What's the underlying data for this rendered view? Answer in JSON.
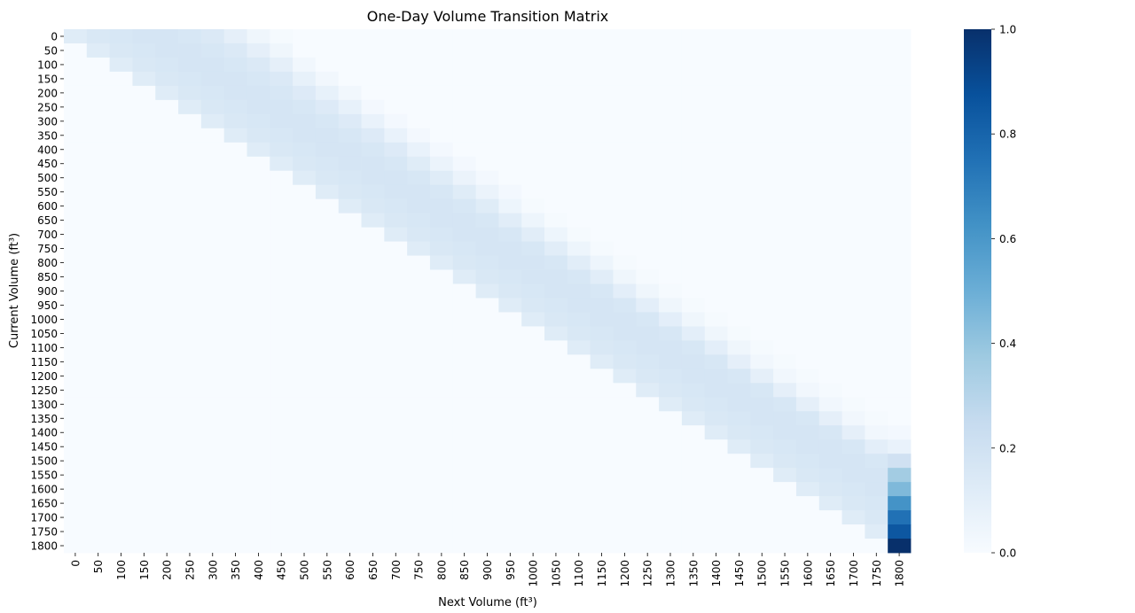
{
  "chart_data": {
    "type": "heatmap",
    "title": "One-Day Volume Transition Matrix",
    "xlabel": "Next Volume (ft³)",
    "ylabel": "Current Volume (ft³)",
    "x_categories": [
      "0",
      "50",
      "100",
      "150",
      "200",
      "250",
      "300",
      "350",
      "400",
      "450",
      "500",
      "550",
      "600",
      "650",
      "700",
      "750",
      "800",
      "850",
      "900",
      "950",
      "1000",
      "1050",
      "1100",
      "1150",
      "1200",
      "1250",
      "1300",
      "1350",
      "1400",
      "1450",
      "1500",
      "1550",
      "1600",
      "1650",
      "1700",
      "1750",
      "1800"
    ],
    "y_categories": [
      "0",
      "50",
      "100",
      "150",
      "200",
      "250",
      "300",
      "350",
      "400",
      "450",
      "500",
      "550",
      "600",
      "650",
      "700",
      "750",
      "800",
      "850",
      "900",
      "950",
      "1000",
      "1050",
      "1100",
      "1150",
      "1200",
      "1250",
      "1300",
      "1350",
      "1400",
      "1450",
      "1500",
      "1550",
      "1600",
      "1650",
      "1700",
      "1750",
      "1800"
    ],
    "values": [
      [
        0.12,
        0.15,
        0.16,
        0.17,
        0.17,
        0.16,
        0.14,
        0.09,
        0.04,
        0.01,
        0,
        0,
        0,
        0,
        0,
        0,
        0,
        0,
        0,
        0,
        0,
        0,
        0,
        0,
        0,
        0,
        0,
        0,
        0,
        0,
        0,
        0,
        0,
        0,
        0,
        0,
        0
      ],
      [
        0,
        0.12,
        0.15,
        0.16,
        0.17,
        0.17,
        0.16,
        0.14,
        0.09,
        0.04,
        0,
        0,
        0,
        0,
        0,
        0,
        0,
        0,
        0,
        0,
        0,
        0,
        0,
        0,
        0,
        0,
        0,
        0,
        0,
        0,
        0,
        0,
        0,
        0,
        0,
        0,
        0
      ],
      [
        0,
        0,
        0.12,
        0.15,
        0.16,
        0.17,
        0.17,
        0.16,
        0.14,
        0.09,
        0.03,
        0,
        0,
        0,
        0,
        0,
        0,
        0,
        0,
        0,
        0,
        0,
        0,
        0,
        0,
        0,
        0,
        0,
        0,
        0,
        0,
        0,
        0,
        0,
        0,
        0,
        0
      ],
      [
        0,
        0,
        0,
        0.12,
        0.15,
        0.16,
        0.17,
        0.17,
        0.16,
        0.14,
        0.08,
        0.03,
        0,
        0,
        0,
        0,
        0,
        0,
        0,
        0,
        0,
        0,
        0,
        0,
        0,
        0,
        0,
        0,
        0,
        0,
        0,
        0,
        0,
        0,
        0,
        0,
        0
      ],
      [
        0,
        0,
        0,
        0,
        0.12,
        0.15,
        0.16,
        0.17,
        0.17,
        0.16,
        0.13,
        0.08,
        0.03,
        0,
        0,
        0,
        0,
        0,
        0,
        0,
        0,
        0,
        0,
        0,
        0,
        0,
        0,
        0,
        0,
        0,
        0,
        0,
        0,
        0,
        0,
        0,
        0
      ],
      [
        0,
        0,
        0,
        0,
        0,
        0.12,
        0.15,
        0.16,
        0.17,
        0.17,
        0.16,
        0.13,
        0.08,
        0.02,
        0,
        0,
        0,
        0,
        0,
        0,
        0,
        0,
        0,
        0,
        0,
        0,
        0,
        0,
        0,
        0,
        0,
        0,
        0,
        0,
        0,
        0,
        0
      ],
      [
        0,
        0,
        0,
        0,
        0,
        0,
        0.12,
        0.15,
        0.16,
        0.17,
        0.17,
        0.16,
        0.13,
        0.07,
        0.02,
        0,
        0,
        0,
        0,
        0,
        0,
        0,
        0,
        0,
        0,
        0,
        0,
        0,
        0,
        0,
        0,
        0,
        0,
        0,
        0,
        0,
        0
      ],
      [
        0,
        0,
        0,
        0,
        0,
        0,
        0,
        0.12,
        0.15,
        0.16,
        0.17,
        0.17,
        0.16,
        0.13,
        0.07,
        0.02,
        0,
        0,
        0,
        0,
        0,
        0,
        0,
        0,
        0,
        0,
        0,
        0,
        0,
        0,
        0,
        0,
        0,
        0,
        0,
        0,
        0
      ],
      [
        0,
        0,
        0,
        0,
        0,
        0,
        0,
        0,
        0.12,
        0.15,
        0.16,
        0.17,
        0.17,
        0.16,
        0.13,
        0.07,
        0.02,
        0,
        0,
        0,
        0,
        0,
        0,
        0,
        0,
        0,
        0,
        0,
        0,
        0,
        0,
        0,
        0,
        0,
        0,
        0,
        0
      ],
      [
        0,
        0,
        0,
        0,
        0,
        0,
        0,
        0,
        0,
        0.12,
        0.15,
        0.16,
        0.17,
        0.17,
        0.16,
        0.12,
        0.06,
        0.02,
        0,
        0,
        0,
        0,
        0,
        0,
        0,
        0,
        0,
        0,
        0,
        0,
        0,
        0,
        0,
        0,
        0,
        0,
        0
      ],
      [
        0,
        0,
        0,
        0,
        0,
        0,
        0,
        0,
        0,
        0,
        0.12,
        0.15,
        0.16,
        0.17,
        0.17,
        0.16,
        0.12,
        0.06,
        0.02,
        0,
        0,
        0,
        0,
        0,
        0,
        0,
        0,
        0,
        0,
        0,
        0,
        0,
        0,
        0,
        0,
        0,
        0
      ],
      [
        0,
        0,
        0,
        0,
        0,
        0,
        0,
        0,
        0,
        0,
        0,
        0.12,
        0.15,
        0.16,
        0.17,
        0.17,
        0.16,
        0.12,
        0.06,
        0.02,
        0,
        0,
        0,
        0,
        0,
        0,
        0,
        0,
        0,
        0,
        0,
        0,
        0,
        0,
        0,
        0,
        0
      ],
      [
        0,
        0,
        0,
        0,
        0,
        0,
        0,
        0,
        0,
        0,
        0,
        0,
        0.12,
        0.15,
        0.16,
        0.17,
        0.17,
        0.16,
        0.12,
        0.05,
        0.01,
        0,
        0,
        0,
        0,
        0,
        0,
        0,
        0,
        0,
        0,
        0,
        0,
        0,
        0,
        0,
        0
      ],
      [
        0,
        0,
        0,
        0,
        0,
        0,
        0,
        0,
        0,
        0,
        0,
        0,
        0,
        0.12,
        0.15,
        0.16,
        0.17,
        0.17,
        0.16,
        0.11,
        0.05,
        0.01,
        0,
        0,
        0,
        0,
        0,
        0,
        0,
        0,
        0,
        0,
        0,
        0,
        0,
        0,
        0
      ],
      [
        0,
        0,
        0,
        0,
        0,
        0,
        0,
        0,
        0,
        0,
        0,
        0,
        0,
        0,
        0.12,
        0.15,
        0.16,
        0.17,
        0.17,
        0.16,
        0.11,
        0.05,
        0.01,
        0,
        0,
        0,
        0,
        0,
        0,
        0,
        0,
        0,
        0,
        0,
        0,
        0,
        0
      ],
      [
        0,
        0,
        0,
        0,
        0,
        0,
        0,
        0,
        0,
        0,
        0,
        0,
        0,
        0,
        0,
        0.12,
        0.15,
        0.16,
        0.17,
        0.17,
        0.16,
        0.11,
        0.05,
        0.01,
        0,
        0,
        0,
        0,
        0,
        0,
        0,
        0,
        0,
        0,
        0,
        0,
        0
      ],
      [
        0,
        0,
        0,
        0,
        0,
        0,
        0,
        0,
        0,
        0,
        0,
        0,
        0,
        0,
        0,
        0,
        0.12,
        0.15,
        0.16,
        0.17,
        0.17,
        0.16,
        0.11,
        0.05,
        0.01,
        0,
        0,
        0,
        0,
        0,
        0,
        0,
        0,
        0,
        0,
        0,
        0
      ],
      [
        0,
        0,
        0,
        0,
        0,
        0,
        0,
        0,
        0,
        0,
        0,
        0,
        0,
        0,
        0,
        0,
        0,
        0.12,
        0.15,
        0.16,
        0.17,
        0.17,
        0.16,
        0.11,
        0.04,
        0.01,
        0,
        0,
        0,
        0,
        0,
        0,
        0,
        0,
        0,
        0,
        0
      ],
      [
        0,
        0,
        0,
        0,
        0,
        0,
        0,
        0,
        0,
        0,
        0,
        0,
        0,
        0,
        0,
        0,
        0,
        0,
        0.12,
        0.15,
        0.16,
        0.17,
        0.17,
        0.16,
        0.1,
        0.04,
        0.01,
        0,
        0,
        0,
        0,
        0,
        0,
        0,
        0,
        0,
        0
      ],
      [
        0,
        0,
        0,
        0,
        0,
        0,
        0,
        0,
        0,
        0,
        0,
        0,
        0,
        0,
        0,
        0,
        0,
        0,
        0,
        0.12,
        0.15,
        0.16,
        0.17,
        0.17,
        0.16,
        0.1,
        0.04,
        0.01,
        0,
        0,
        0,
        0,
        0,
        0,
        0,
        0,
        0
      ],
      [
        0,
        0,
        0,
        0,
        0,
        0,
        0,
        0,
        0,
        0,
        0,
        0,
        0,
        0,
        0,
        0,
        0,
        0,
        0,
        0,
        0.12,
        0.15,
        0.16,
        0.17,
        0.17,
        0.16,
        0.1,
        0.04,
        0.01,
        0,
        0,
        0,
        0,
        0,
        0,
        0,
        0
      ],
      [
        0,
        0,
        0,
        0,
        0,
        0,
        0,
        0,
        0,
        0,
        0,
        0,
        0,
        0,
        0,
        0,
        0,
        0,
        0,
        0,
        0,
        0.12,
        0.15,
        0.16,
        0.17,
        0.17,
        0.16,
        0.1,
        0.04,
        0.01,
        0,
        0,
        0,
        0,
        0,
        0,
        0
      ],
      [
        0,
        0,
        0,
        0,
        0,
        0,
        0,
        0,
        0,
        0,
        0,
        0,
        0,
        0,
        0,
        0,
        0,
        0,
        0,
        0,
        0,
        0,
        0.12,
        0.15,
        0.16,
        0.17,
        0.17,
        0.16,
        0.1,
        0.04,
        0.01,
        0,
        0,
        0,
        0,
        0,
        0
      ],
      [
        0,
        0,
        0,
        0,
        0,
        0,
        0,
        0,
        0,
        0,
        0,
        0,
        0,
        0,
        0,
        0,
        0,
        0,
        0,
        0,
        0,
        0,
        0,
        0.12,
        0.15,
        0.16,
        0.17,
        0.17,
        0.16,
        0.09,
        0.03,
        0.01,
        0,
        0,
        0,
        0,
        0
      ],
      [
        0,
        0,
        0,
        0,
        0,
        0,
        0,
        0,
        0,
        0,
        0,
        0,
        0,
        0,
        0,
        0,
        0,
        0,
        0,
        0,
        0,
        0,
        0,
        0,
        0.12,
        0.15,
        0.16,
        0.17,
        0.17,
        0.16,
        0.09,
        0.03,
        0.01,
        0,
        0,
        0,
        0
      ],
      [
        0,
        0,
        0,
        0,
        0,
        0,
        0,
        0,
        0,
        0,
        0,
        0,
        0,
        0,
        0,
        0,
        0,
        0,
        0,
        0,
        0,
        0,
        0,
        0,
        0,
        0.12,
        0.15,
        0.16,
        0.17,
        0.17,
        0.16,
        0.09,
        0.03,
        0.01,
        0,
        0,
        0
      ],
      [
        0,
        0,
        0,
        0,
        0,
        0,
        0,
        0,
        0,
        0,
        0,
        0,
        0,
        0,
        0,
        0,
        0,
        0,
        0,
        0,
        0,
        0,
        0,
        0,
        0,
        0,
        0.12,
        0.15,
        0.16,
        0.17,
        0.17,
        0.16,
        0.09,
        0.03,
        0.01,
        0,
        0
      ],
      [
        0,
        0,
        0,
        0,
        0,
        0,
        0,
        0,
        0,
        0,
        0,
        0,
        0,
        0,
        0,
        0,
        0,
        0,
        0,
        0,
        0,
        0,
        0,
        0,
        0,
        0,
        0,
        0.12,
        0.15,
        0.16,
        0.17,
        0.17,
        0.16,
        0.09,
        0.03,
        0.01,
        0
      ],
      [
        0,
        0,
        0,
        0,
        0,
        0,
        0,
        0,
        0,
        0,
        0,
        0,
        0,
        0,
        0,
        0,
        0,
        0,
        0,
        0,
        0,
        0,
        0,
        0,
        0,
        0,
        0,
        0,
        0.12,
        0.15,
        0.16,
        0.17,
        0.17,
        0.16,
        0.09,
        0.03,
        0.02
      ],
      [
        0,
        0,
        0,
        0,
        0,
        0,
        0,
        0,
        0,
        0,
        0,
        0,
        0,
        0,
        0,
        0,
        0,
        0,
        0,
        0,
        0,
        0,
        0,
        0,
        0,
        0,
        0,
        0,
        0,
        0.12,
        0.15,
        0.16,
        0.17,
        0.17,
        0.16,
        0.1,
        0.07
      ],
      [
        0,
        0,
        0,
        0,
        0,
        0,
        0,
        0,
        0,
        0,
        0,
        0,
        0,
        0,
        0,
        0,
        0,
        0,
        0,
        0,
        0,
        0,
        0,
        0,
        0,
        0,
        0,
        0,
        0,
        0,
        0.12,
        0.15,
        0.16,
        0.17,
        0.17,
        0.16,
        0.2
      ],
      [
        0,
        0,
        0,
        0,
        0,
        0,
        0,
        0,
        0,
        0,
        0,
        0,
        0,
        0,
        0,
        0,
        0,
        0,
        0,
        0,
        0,
        0,
        0,
        0,
        0,
        0,
        0,
        0,
        0,
        0,
        0,
        0.12,
        0.15,
        0.16,
        0.17,
        0.17,
        0.36
      ],
      [
        0,
        0,
        0,
        0,
        0,
        0,
        0,
        0,
        0,
        0,
        0,
        0,
        0,
        0,
        0,
        0,
        0,
        0,
        0,
        0,
        0,
        0,
        0,
        0,
        0,
        0,
        0,
        0,
        0,
        0,
        0,
        0,
        0.12,
        0.15,
        0.16,
        0.17,
        0.45
      ],
      [
        0,
        0,
        0,
        0,
        0,
        0,
        0,
        0,
        0,
        0,
        0,
        0,
        0,
        0,
        0,
        0,
        0,
        0,
        0,
        0,
        0,
        0,
        0,
        0,
        0,
        0,
        0,
        0,
        0,
        0,
        0,
        0,
        0,
        0.12,
        0.15,
        0.16,
        0.62
      ],
      [
        0,
        0,
        0,
        0,
        0,
        0,
        0,
        0,
        0,
        0,
        0,
        0,
        0,
        0,
        0,
        0,
        0,
        0,
        0,
        0,
        0,
        0,
        0,
        0,
        0,
        0,
        0,
        0,
        0,
        0,
        0,
        0,
        0,
        0,
        0.12,
        0.15,
        0.75
      ],
      [
        0,
        0,
        0,
        0,
        0,
        0,
        0,
        0,
        0,
        0,
        0,
        0,
        0,
        0,
        0,
        0,
        0,
        0,
        0,
        0,
        0,
        0,
        0,
        0,
        0,
        0,
        0,
        0,
        0,
        0,
        0,
        0,
        0,
        0,
        0,
        0.12,
        0.85
      ],
      [
        0,
        0,
        0,
        0,
        0,
        0,
        0,
        0,
        0,
        0,
        0,
        0,
        0,
        0,
        0,
        0,
        0,
        0,
        0,
        0,
        0,
        0,
        0,
        0,
        0,
        0,
        0,
        0,
        0,
        0,
        0,
        0,
        0,
        0,
        0,
        0,
        1.0
      ]
    ],
    "colorbar": {
      "colormap": "Blues",
      "min": 0.0,
      "max": 1.0,
      "ticks": [
        "0.0",
        "0.2",
        "0.4",
        "0.6",
        "0.8",
        "1.0"
      ]
    },
    "grid": false,
    "legend": "colorbar-right"
  }
}
